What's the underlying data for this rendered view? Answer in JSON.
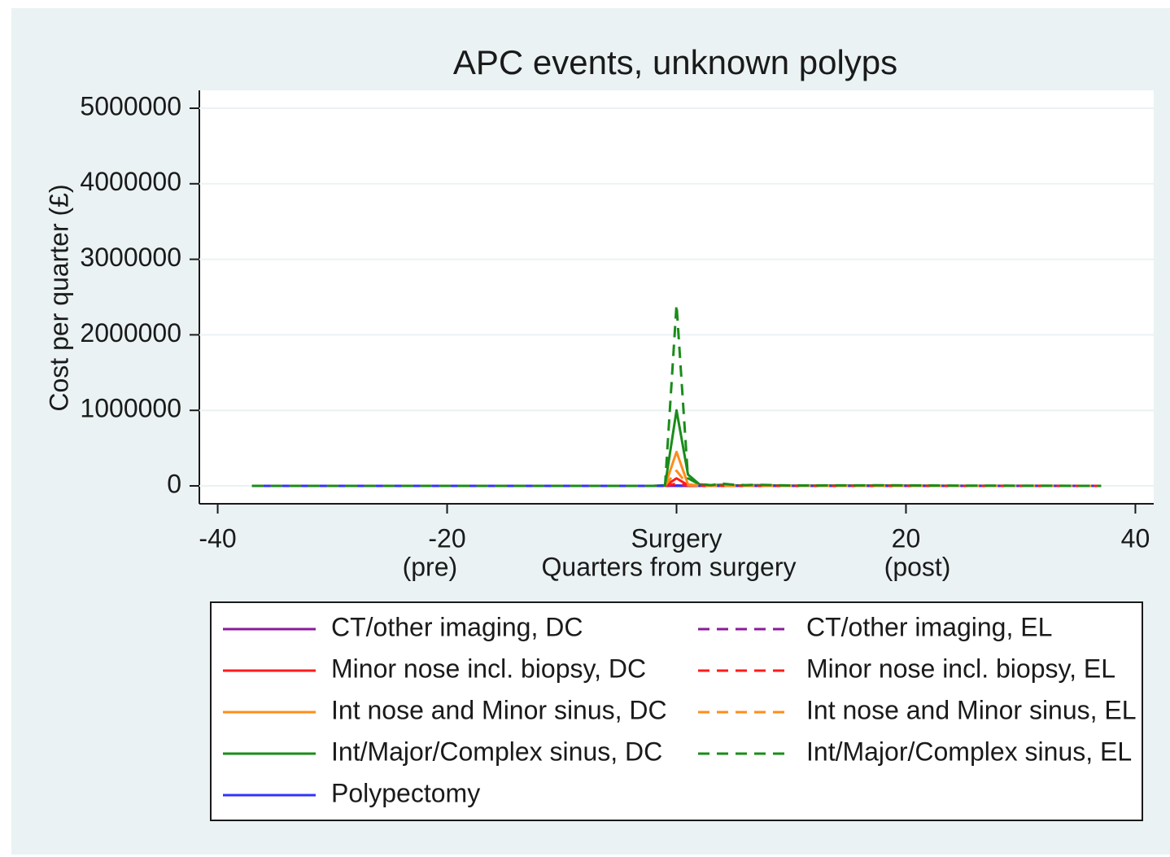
{
  "chart_data": {
    "type": "line",
    "title": "APC events, unknown polyps",
    "x_label": "Quarters from surgery",
    "y_label": "Cost per quarter (£)",
    "x": [
      -37,
      -20,
      -10,
      -2,
      -1,
      0,
      1,
      2,
      3,
      4,
      5,
      6,
      7,
      10,
      18,
      25,
      37
    ],
    "series": [
      {
        "name": "CT/other imaging, DC",
        "color": "#8b1a9b",
        "dash": false,
        "values": [
          0,
          0,
          0,
          0,
          0,
          5000,
          1000,
          0,
          0,
          0,
          0,
          0,
          0,
          0,
          0,
          0,
          0
        ]
      },
      {
        "name": "Minor nose incl. biopsy, DC",
        "color": "#ff1a1a",
        "dash": false,
        "values": [
          0,
          0,
          0,
          0,
          2000,
          100000,
          10000,
          2000,
          0,
          0,
          0,
          0,
          0,
          0,
          0,
          0,
          0
        ]
      },
      {
        "name": "Int nose and Minor sinus, DC",
        "color": "#ff8c1a",
        "dash": false,
        "values": [
          0,
          0,
          0,
          0,
          3000,
          450000,
          20000,
          5000,
          2000,
          3000,
          2000,
          1000,
          2000,
          1000,
          1000,
          0,
          0
        ]
      },
      {
        "name": "Int/Major/Complex sinus, DC",
        "color": "#1a8c1a",
        "dash": false,
        "values": [
          0,
          0,
          0,
          0,
          10000,
          1000000,
          150000,
          20000,
          10000,
          15000,
          8000,
          5000,
          10000,
          3000,
          5000,
          2000,
          0
        ]
      },
      {
        "name": "Polypectomy",
        "color": "#3333ff",
        "dash": false,
        "values": [
          0,
          0,
          0,
          0,
          0,
          2000,
          0,
          0,
          0,
          0,
          0,
          0,
          0,
          0,
          0,
          0,
          0
        ]
      },
      {
        "name": "CT/other imaging, EL",
        "color": "#8b1a9b",
        "dash": true,
        "values": [
          0,
          0,
          0,
          0,
          0,
          5000,
          1000,
          0,
          0,
          0,
          0,
          0,
          0,
          0,
          0,
          0,
          0
        ]
      },
      {
        "name": "Minor nose incl. biopsy, EL",
        "color": "#ff1a1a",
        "dash": true,
        "values": [
          0,
          0,
          0,
          0,
          1000,
          30000,
          5000,
          1000,
          0,
          0,
          0,
          0,
          0,
          0,
          0,
          0,
          0
        ]
      },
      {
        "name": "Int nose and Minor sinus, EL",
        "color": "#ff8c1a",
        "dash": true,
        "values": [
          0,
          0,
          0,
          0,
          2000,
          200000,
          10000,
          3000,
          1000,
          2000,
          1000,
          0,
          1000,
          0,
          0,
          0,
          0
        ]
      },
      {
        "name": "Int/Major/Complex sinus, EL",
        "color": "#1a8c1a",
        "dash": true,
        "values": [
          0,
          0,
          0,
          0,
          5000,
          2400000,
          100000,
          20000,
          10000,
          30000,
          15000,
          10000,
          15000,
          5000,
          8000,
          3000,
          0
        ]
      }
    ],
    "xlim": [
      -41.6,
      41.6
    ],
    "ylim": [
      -237000,
      5237000
    ],
    "xticks": [
      -40,
      -20,
      {
        "value": 0,
        "label": "Surgery"
      },
      20,
      40
    ],
    "yticks": [
      0,
      1000000,
      2000000,
      3000000,
      4000000,
      5000000
    ],
    "annotations": [
      {
        "text": "(pre)",
        "x": -21.5
      },
      {
        "text": "(post)",
        "x": 21
      }
    ],
    "grid": true,
    "legend": "bottom"
  }
}
